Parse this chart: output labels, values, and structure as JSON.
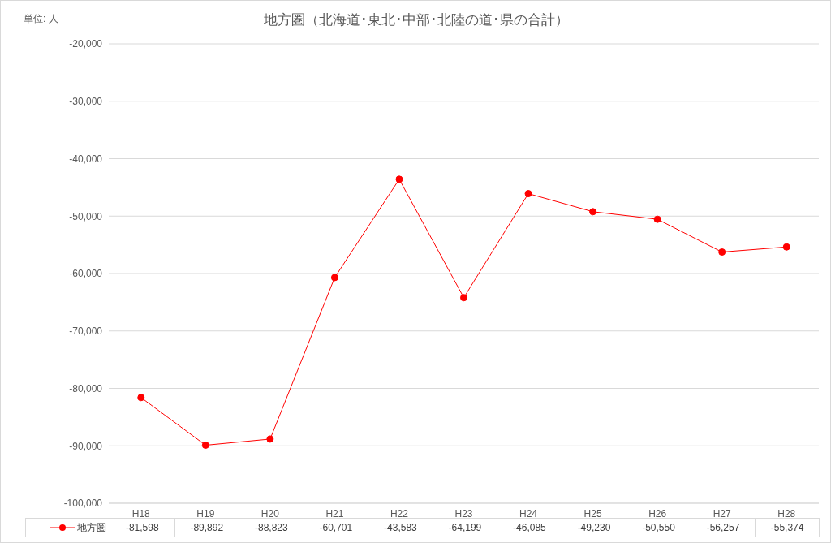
{
  "chart_data": {
    "type": "line",
    "title": "地方圏（北海道･東北･中部･北陸の道･県の合計）",
    "annotations": [
      "単位: 人"
    ],
    "categories": [
      "H18",
      "H19",
      "H20",
      "H21",
      "H22",
      "H23",
      "H24",
      "H25",
      "H26",
      "H27",
      "H28"
    ],
    "series": [
      {
        "name": "地方圏",
        "color": "#ff0000",
        "values": [
          -81598,
          -89892,
          -88823,
          -60701,
          -43583,
          -64199,
          -46085,
          -49230,
          -50550,
          -56257,
          -55374
        ],
        "value_labels": [
          "-81,598",
          "-89,892",
          "-88,823",
          "-60,701",
          "-43,583",
          "-64,199",
          "-46,085",
          "-49,230",
          "-50,550",
          "-56,257",
          "-55,374"
        ]
      }
    ],
    "ylim": [
      -100000,
      -20000
    ],
    "yticks": [
      {
        "value": -100000,
        "label": "-100,000"
      },
      {
        "value": -90000,
        "label": "-90,000"
      },
      {
        "value": -80000,
        "label": "-80,000"
      },
      {
        "value": -70000,
        "label": "-70,000"
      },
      {
        "value": -60000,
        "label": "-60,000"
      },
      {
        "value": -50000,
        "label": "-50,000"
      },
      {
        "value": -40000,
        "label": "-40,000"
      },
      {
        "value": -30000,
        "label": "-30,000"
      },
      {
        "value": -20000,
        "label": "-20,000"
      }
    ],
    "grid": "y",
    "marker": "circle",
    "line_style": "solid",
    "legend": "bottom"
  }
}
